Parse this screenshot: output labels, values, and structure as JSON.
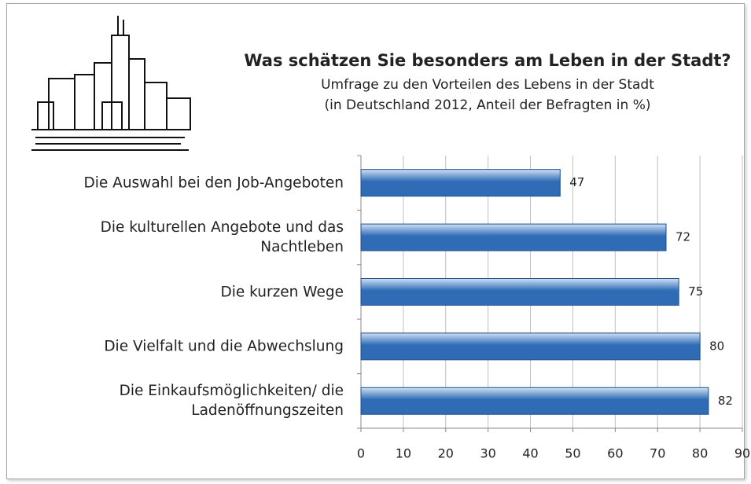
{
  "chart_data": {
    "type": "bar",
    "orientation": "horizontal",
    "title": "Was schätzen Sie besonders am Leben in der Stadt?",
    "subtitle": [
      "Umfrage zu den Vorteilen des Lebens in der Stadt",
      "(in Deutschland 2012, Anteil der Befragten in %)"
    ],
    "categories": [
      "Die Auswahl bei den Job-Angeboten",
      "Die kulturellen Angebote und das Nachtleben",
      "Die kurzen Wege",
      "Die Vielfalt und die Abwechslung",
      "Die Einkaufsmöglichkeiten/ die Ladenöffnungszeiten"
    ],
    "values": [
      47,
      72,
      75,
      80,
      82
    ],
    "color": "#2f6cb5",
    "xlim": [
      0,
      90
    ],
    "xticks": [
      0,
      10,
      20,
      30,
      40,
      50,
      60,
      70,
      80,
      90
    ],
    "grid": true
  }
}
